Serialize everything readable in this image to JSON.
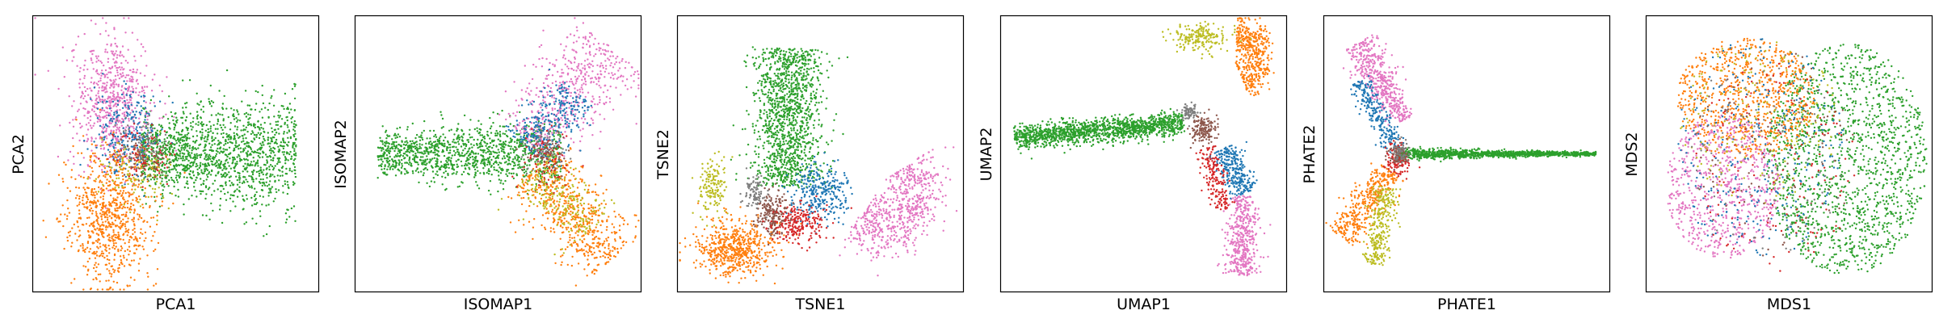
{
  "chart_data": [
    {
      "type": "scatter",
      "xlabel": "PCA1",
      "ylabel": "PCA2",
      "ticks": "none",
      "clusters": [
        {
          "color": "#2ca02c",
          "n": 1500,
          "shape": "arm",
          "from": [
            0.38,
            0.5
          ],
          "to": [
            0.92,
            0.5
          ],
          "width": 0.07,
          "widen_to": 0.11
        },
        {
          "color": "#e377c2",
          "n": 700,
          "shape": "blob",
          "center": [
            0.28,
            0.32
          ],
          "spread": [
            0.07,
            0.12
          ]
        },
        {
          "color": "#1f77b4",
          "n": 250,
          "shape": "blob",
          "center": [
            0.33,
            0.42
          ],
          "spread": [
            0.06,
            0.09
          ]
        },
        {
          "color": "#ff7f0e",
          "n": 800,
          "shape": "blob",
          "center": [
            0.27,
            0.73
          ],
          "spread": [
            0.07,
            0.12
          ]
        },
        {
          "color": "#bcbd22",
          "n": 120,
          "shape": "blob",
          "center": [
            0.36,
            0.56
          ],
          "spread": [
            0.06,
            0.06
          ]
        },
        {
          "color": "#d62728",
          "n": 90,
          "shape": "blob",
          "center": [
            0.37,
            0.5
          ],
          "spread": [
            0.05,
            0.05
          ]
        },
        {
          "color": "#8c564b",
          "n": 70,
          "shape": "blob",
          "center": [
            0.4,
            0.52
          ],
          "spread": [
            0.04,
            0.04
          ]
        },
        {
          "color": "#7f7f7f",
          "n": 60,
          "shape": "blob",
          "center": [
            0.37,
            0.46
          ],
          "spread": [
            0.04,
            0.04
          ]
        }
      ]
    },
    {
      "type": "scatter",
      "xlabel": "ISOMAP1",
      "ylabel": "ISOMAP2",
      "ticks": "none",
      "clusters": [
        {
          "color": "#2ca02c",
          "n": 1200,
          "shape": "arm",
          "from": [
            0.08,
            0.5
          ],
          "to": [
            0.72,
            0.5
          ],
          "width": 0.04,
          "widen_to": 0.06
        },
        {
          "color": "#e377c2",
          "n": 550,
          "shape": "arm",
          "from": [
            0.6,
            0.45
          ],
          "to": [
            0.9,
            0.12
          ],
          "width": 0.06,
          "widen_to": 0.08
        },
        {
          "color": "#1f77b4",
          "n": 300,
          "shape": "arm",
          "from": [
            0.6,
            0.48
          ],
          "to": [
            0.78,
            0.28
          ],
          "width": 0.05,
          "widen_to": 0.05
        },
        {
          "color": "#ff7f0e",
          "n": 600,
          "shape": "arm",
          "from": [
            0.62,
            0.55
          ],
          "to": [
            0.9,
            0.88
          ],
          "width": 0.06,
          "widen_to": 0.07
        },
        {
          "color": "#bcbd22",
          "n": 220,
          "shape": "arm",
          "from": [
            0.62,
            0.55
          ],
          "to": [
            0.82,
            0.78
          ],
          "width": 0.05,
          "widen_to": 0.05
        },
        {
          "color": "#d62728",
          "n": 80,
          "shape": "blob",
          "center": [
            0.66,
            0.52
          ],
          "spread": [
            0.05,
            0.05
          ]
        },
        {
          "color": "#8c564b",
          "n": 60,
          "shape": "blob",
          "center": [
            0.67,
            0.5
          ],
          "spread": [
            0.04,
            0.04
          ]
        },
        {
          "color": "#7f7f7f",
          "n": 50,
          "shape": "blob",
          "center": [
            0.66,
            0.48
          ],
          "spread": [
            0.04,
            0.04
          ]
        }
      ]
    },
    {
      "type": "scatter",
      "xlabel": "TSNE1",
      "ylabel": "TSNE2",
      "ticks": "none",
      "clusters": [
        {
          "color": "#2ca02c",
          "n": 1300,
          "shape": "arm",
          "from": [
            0.4,
            0.12
          ],
          "to": [
            0.38,
            0.62
          ],
          "width": 0.06,
          "widen_to": 0.06
        },
        {
          "color": "#e377c2",
          "n": 650,
          "shape": "arc",
          "center": [
            0.7,
            0.62
          ],
          "radius": [
            0.14,
            0.16
          ],
          "theta": [
            -0.6,
            2.2
          ],
          "width": 0.05
        },
        {
          "color": "#1f77b4",
          "n": 300,
          "shape": "blob",
          "center": [
            0.5,
            0.64
          ],
          "spread": [
            0.05,
            0.05
          ]
        },
        {
          "color": "#ff7f0e",
          "n": 600,
          "shape": "blob",
          "center": [
            0.2,
            0.84
          ],
          "spread": [
            0.07,
            0.05
          ]
        },
        {
          "color": "#bcbd22",
          "n": 150,
          "shape": "blob",
          "center": [
            0.12,
            0.62
          ],
          "spread": [
            0.025,
            0.05
          ]
        },
        {
          "color": "#8c564b",
          "n": 200,
          "shape": "blob",
          "center": [
            0.33,
            0.72
          ],
          "spread": [
            0.03,
            0.04
          ]
        },
        {
          "color": "#7f7f7f",
          "n": 90,
          "shape": "blob",
          "center": [
            0.27,
            0.64
          ],
          "spread": [
            0.02,
            0.03
          ]
        },
        {
          "color": "#d62728",
          "n": 220,
          "shape": "blob",
          "center": [
            0.42,
            0.75
          ],
          "spread": [
            0.05,
            0.035
          ]
        }
      ]
    },
    {
      "type": "scatter",
      "xlabel": "UMAP1",
      "ylabel": "UMAP2",
      "ticks": "none",
      "clusters": [
        {
          "color": "#2ca02c",
          "n": 1400,
          "shape": "arm",
          "from": [
            0.05,
            0.44
          ],
          "to": [
            0.64,
            0.39
          ],
          "width": 0.022,
          "widen_to": 0.02
        },
        {
          "color": "#ff7f0e",
          "n": 450,
          "shape": "arc",
          "center": [
            0.82,
            0.15
          ],
          "radius": [
            0.08,
            0.1
          ],
          "theta": [
            -1.5,
            1.2
          ],
          "width": 0.03
        },
        {
          "color": "#bcbd22",
          "n": 200,
          "shape": "blob",
          "center": [
            0.7,
            0.08
          ],
          "spread": [
            0.05,
            0.025
          ]
        },
        {
          "color": "#e377c2",
          "n": 450,
          "shape": "arm",
          "from": [
            0.85,
            0.65
          ],
          "to": [
            0.84,
            0.94
          ],
          "width": 0.025,
          "widen_to": 0.03
        },
        {
          "color": "#1f77b4",
          "n": 300,
          "shape": "arm",
          "from": [
            0.78,
            0.48
          ],
          "to": [
            0.86,
            0.64
          ],
          "width": 0.025,
          "widen_to": 0.025
        },
        {
          "color": "#8c564b",
          "n": 150,
          "shape": "blob",
          "center": [
            0.71,
            0.41
          ],
          "spread": [
            0.025,
            0.025
          ]
        },
        {
          "color": "#7f7f7f",
          "n": 80,
          "shape": "blob",
          "center": [
            0.66,
            0.35
          ],
          "spread": [
            0.015,
            0.015
          ]
        },
        {
          "color": "#d62728",
          "n": 180,
          "shape": "arm",
          "from": [
            0.72,
            0.48
          ],
          "to": [
            0.78,
            0.7
          ],
          "width": 0.02,
          "widen_to": 0.02
        }
      ]
    },
    {
      "type": "scatter",
      "xlabel": "PHATE1",
      "ylabel": "PHATE2",
      "ticks": "none",
      "clusters": [
        {
          "color": "#2ca02c",
          "n": 1300,
          "shape": "arm",
          "from": [
            0.26,
            0.5
          ],
          "to": [
            0.95,
            0.5
          ],
          "width": 0.01,
          "widen_to": 0.003
        },
        {
          "color": "#e377c2",
          "n": 500,
          "shape": "arm",
          "from": [
            0.12,
            0.1
          ],
          "to": [
            0.28,
            0.38
          ],
          "width": 0.035,
          "widen_to": 0.02
        },
        {
          "color": "#1f77b4",
          "n": 250,
          "shape": "arm",
          "from": [
            0.12,
            0.24
          ],
          "to": [
            0.26,
            0.48
          ],
          "width": 0.02,
          "widen_to": 0.02
        },
        {
          "color": "#ff7f0e",
          "n": 400,
          "shape": "arm",
          "from": [
            0.24,
            0.56
          ],
          "to": [
            0.06,
            0.8
          ],
          "width": 0.025,
          "widen_to": 0.03
        },
        {
          "color": "#bcbd22",
          "n": 300,
          "shape": "arm",
          "from": [
            0.22,
            0.62
          ],
          "to": [
            0.18,
            0.9
          ],
          "width": 0.025,
          "widen_to": 0.02
        },
        {
          "color": "#d62728",
          "n": 120,
          "shape": "blob",
          "center": [
            0.26,
            0.52
          ],
          "spread": [
            0.02,
            0.03
          ]
        },
        {
          "color": "#8c564b",
          "n": 80,
          "shape": "blob",
          "center": [
            0.26,
            0.5
          ],
          "spread": [
            0.015,
            0.02
          ]
        },
        {
          "color": "#7f7f7f",
          "n": 60,
          "shape": "blob",
          "center": [
            0.27,
            0.49
          ],
          "spread": [
            0.015,
            0.02
          ]
        }
      ]
    },
    {
      "type": "scatter",
      "xlabel": "MDS1",
      "ylabel": "MDS2",
      "ticks": "none",
      "clusters": [
        {
          "color": "#2ca02c",
          "n": 1500,
          "shape": "disk",
          "center": [
            0.7,
            0.52
          ],
          "radius": [
            0.28,
            0.42
          ]
        },
        {
          "color": "#ff7f0e",
          "n": 800,
          "shape": "disk",
          "center": [
            0.35,
            0.3
          ],
          "radius": [
            0.24,
            0.22
          ]
        },
        {
          "color": "#e377c2",
          "n": 700,
          "shape": "disk",
          "center": [
            0.27,
            0.62
          ],
          "radius": [
            0.2,
            0.26
          ]
        },
        {
          "color": "#1f77b4",
          "n": 300,
          "shape": "disk",
          "center": [
            0.4,
            0.48
          ],
          "radius": [
            0.3,
            0.4
          ]
        },
        {
          "color": "#bcbd22",
          "n": 200,
          "shape": "disk",
          "center": [
            0.4,
            0.38
          ],
          "radius": [
            0.28,
            0.3
          ]
        },
        {
          "color": "#d62728",
          "n": 150,
          "shape": "disk",
          "center": [
            0.45,
            0.55
          ],
          "radius": [
            0.28,
            0.38
          ]
        },
        {
          "color": "#8c564b",
          "n": 100,
          "shape": "disk",
          "center": [
            0.45,
            0.5
          ],
          "radius": [
            0.28,
            0.38
          ]
        },
        {
          "color": "#7f7f7f",
          "n": 80,
          "shape": "disk",
          "center": [
            0.42,
            0.5
          ],
          "radius": [
            0.28,
            0.38
          ]
        }
      ]
    }
  ]
}
